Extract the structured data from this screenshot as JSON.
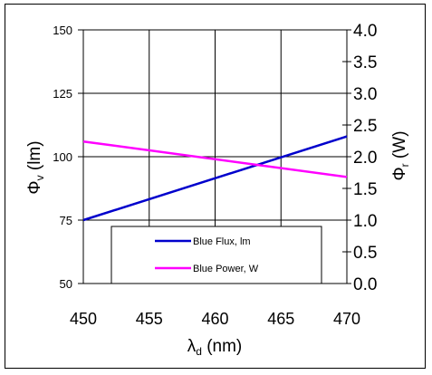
{
  "chart_data": {
    "type": "line",
    "xlabel": {
      "symbol": "λ",
      "sub": "d",
      "rest": " (nm)"
    },
    "ylabel_left": {
      "symbol": "Φ",
      "sub": "v",
      "rest": " (lm)"
    },
    "ylabel_right": {
      "symbol": "Φ",
      "sub": "r",
      "rest": " (W)"
    },
    "x_ticks": [
      "450",
      "455",
      "460",
      "465",
      "470"
    ],
    "y_left_ticks": [
      "50",
      "75",
      "100",
      "125",
      "150"
    ],
    "y_right_ticks": [
      "0.0",
      "0.5",
      "1.0",
      "1.5",
      "2.0",
      "2.5",
      "3.0",
      "3.5",
      "4.0"
    ],
    "xlim": [
      450,
      470
    ],
    "ylim_left": [
      50,
      150
    ],
    "ylim_right": [
      0,
      4
    ],
    "grid": true,
    "legend_position": "bottom-center",
    "series": [
      {
        "name": "Blue Flux,  lm",
        "axis": "left",
        "color": "#0000cc",
        "x": [
          450,
          470
        ],
        "y": [
          75,
          108
        ]
      },
      {
        "name": "Blue Power, W",
        "axis": "right",
        "color": "#ff00ff",
        "x": [
          450,
          470
        ],
        "y": [
          2.24,
          1.68
        ]
      }
    ]
  }
}
